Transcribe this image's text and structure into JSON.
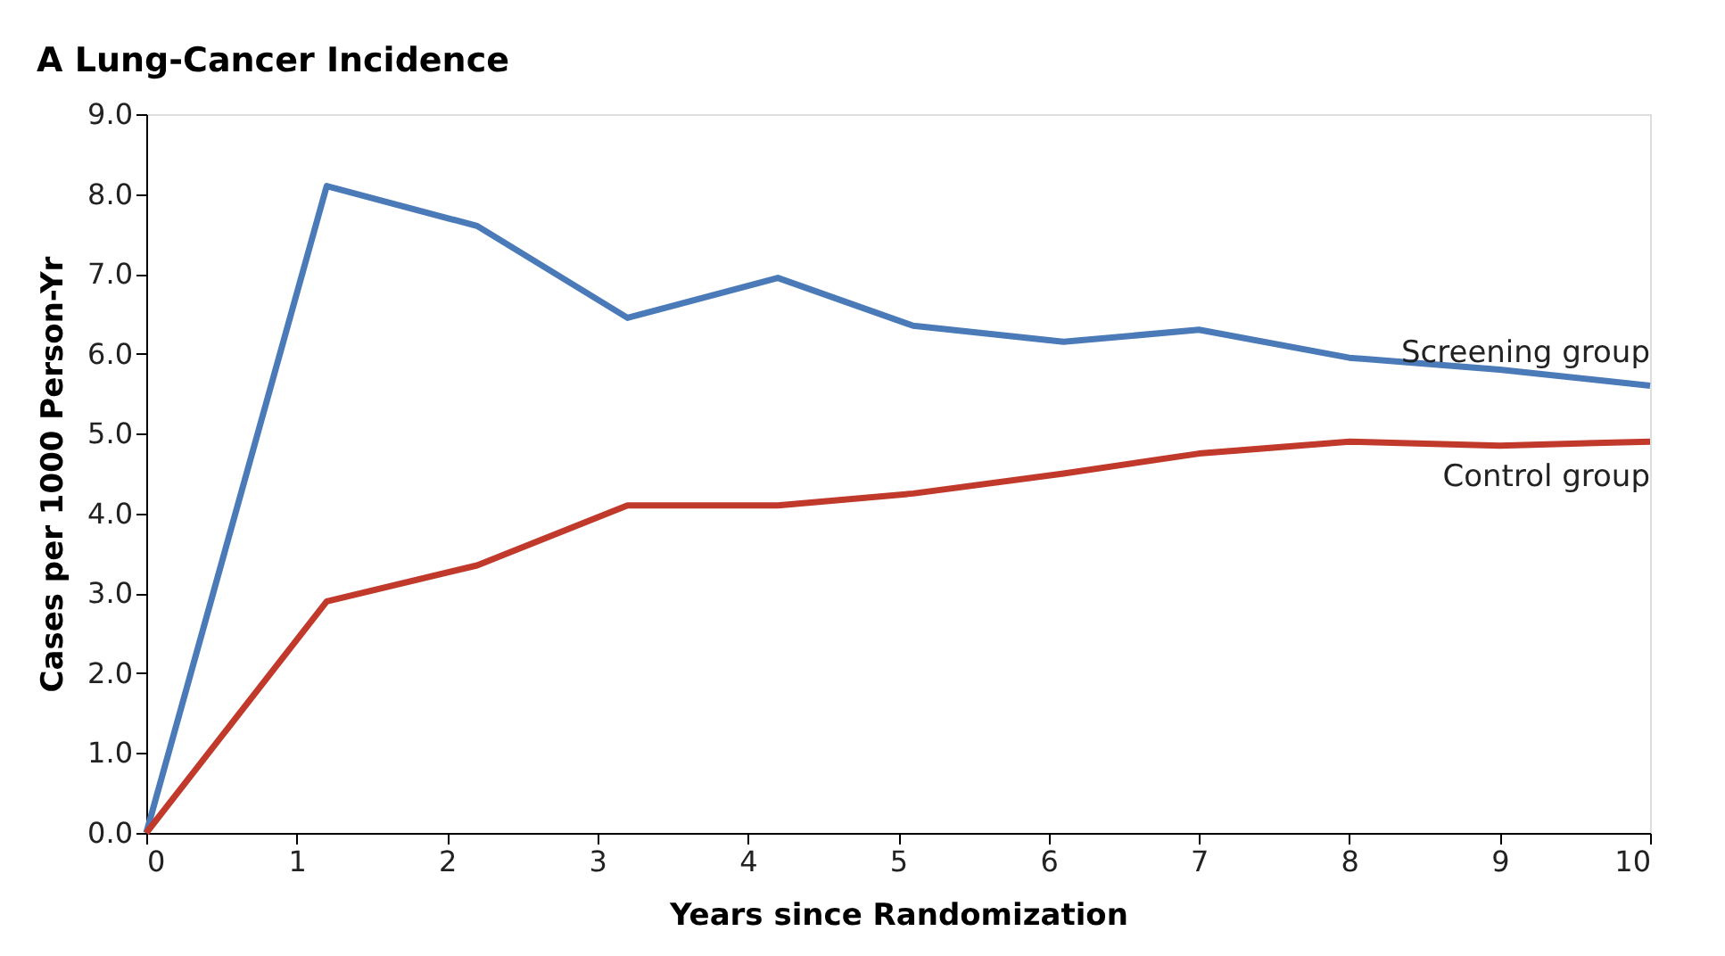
{
  "chart_data": {
    "type": "line",
    "title": "A  Lung-Cancer Incidence",
    "xlabel": "Years since Randomization",
    "ylabel": "Cases per 1000 Person-Yr",
    "x": [
      0,
      1.2,
      2.2,
      3.2,
      4.2,
      5.1,
      6.1,
      7.0,
      8.0,
      9.0,
      10.0
    ],
    "series": [
      {
        "name": "Screening group",
        "color": "#4a7ab8",
        "values": [
          0,
          8.1,
          7.6,
          6.45,
          6.95,
          6.35,
          6.15,
          6.3,
          5.95,
          5.8,
          5.6
        ]
      },
      {
        "name": "Control group",
        "color": "#c0392b",
        "values": [
          0,
          2.9,
          3.35,
          4.1,
          4.1,
          4.25,
          4.5,
          4.75,
          4.9,
          4.85,
          4.9
        ]
      }
    ],
    "xlim": [
      0,
      10
    ],
    "xticks": [
      0,
      1,
      2,
      3,
      4,
      5,
      6,
      7,
      8,
      9,
      10
    ],
    "ylim": [
      0,
      9
    ],
    "yticks": [
      {
        "value": 0,
        "label": "0.0"
      },
      {
        "value": 1,
        "label": "1.0"
      },
      {
        "value": 2,
        "label": "2.0"
      },
      {
        "value": 3,
        "label": "3.0"
      },
      {
        "value": 4,
        "label": "4.0"
      },
      {
        "value": 5,
        "label": "5.0"
      },
      {
        "value": 6,
        "label": "6.0"
      },
      {
        "value": 7,
        "label": "7.0"
      },
      {
        "value": 8,
        "label": "8.0"
      },
      {
        "value": 9,
        "label": "9.0"
      }
    ],
    "grid": false,
    "legend": false,
    "marker": "none",
    "line_style": "solid"
  }
}
